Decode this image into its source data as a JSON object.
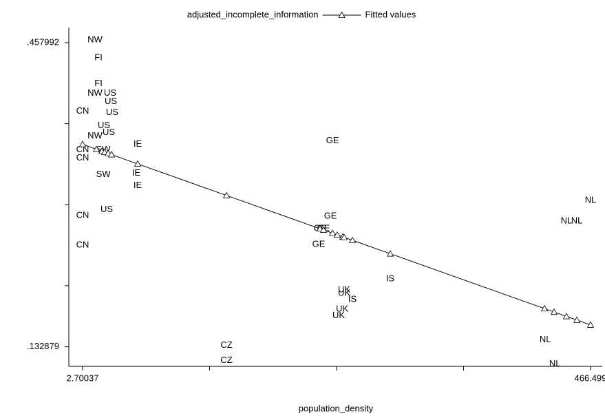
{
  "chart_data": {
    "type": "scatter",
    "xlabel": "population_density",
    "xlim": [
      -9.87,
      477.18
    ],
    "ylim": [
      0.112,
      0.4705
    ],
    "xticks": [
      2.70037,
      {
        "value": 118.65,
        "label": null
      },
      {
        "value": 234.6,
        "label": null
      },
      {
        "value": 350.55,
        "label": null
      },
      466.499
    ],
    "yticks": [
      {
        "value": 0.457992,
        "label": ".457992"
      },
      {
        "value": 0.3714,
        "label": null
      },
      {
        "value": 0.2848,
        "label": null
      },
      {
        "value": 0.1982,
        "label": null
      },
      {
        "value": 0.132879,
        "label": ".132879"
      }
    ],
    "grid": false,
    "legend": "top",
    "series": [
      {
        "name": "adjusted_incomplete_information",
        "color": "#000000",
        "labels": [
          "NW",
          "FI",
          "FI",
          "NW",
          "US",
          "US",
          "US",
          "CN",
          "US",
          "NW",
          "US",
          "CN",
          "SW",
          "CN",
          "SW",
          "IE",
          "IE",
          "IE",
          "US",
          "CN",
          "CN",
          "GE",
          "GE",
          "GE",
          "GE",
          "GE",
          "NL",
          "NL",
          "NL",
          "IS",
          "UK",
          "UK",
          "IS",
          "UK",
          "UK",
          "CZ",
          "CZ",
          "NL",
          "NL"
        ],
        "x": [
          14.0,
          17.2,
          17.2,
          14.0,
          27.8,
          28.5,
          29.7,
          2.7,
          22.2,
          14.0,
          26.6,
          2.7,
          21.6,
          2.7,
          21.6,
          53.0,
          51.7,
          53.0,
          24.7,
          2.7,
          2.7,
          230.9,
          229.0,
          219.5,
          222.7,
          218.3,
          466.5,
          444.5,
          454.0,
          283.6,
          241.5,
          241.5,
          249.1,
          239.7,
          236.5,
          134.1,
          134.1,
          425.1,
          433.9
        ],
        "values": [
          0.4609,
          0.4419,
          0.414,
          0.4037,
          0.4037,
          0.3949,
          0.3831,
          0.3846,
          0.3692,
          0.3582,
          0.3618,
          0.3435,
          0.3435,
          0.3347,
          0.3171,
          0.3494,
          0.3185,
          0.3053,
          0.2796,
          0.273,
          0.2414,
          0.353,
          0.2723,
          0.2591,
          0.2591,
          0.2422,
          0.2892,
          0.2672,
          0.2672,
          0.2055,
          0.1937,
          0.1901,
          0.1835,
          0.1732,
          0.1659,
          0.1343,
          0.1181,
          0.1402,
          0.1145
        ]
      },
      {
        "name": "Fitted values",
        "color": "#000000",
        "x": [
          2.7,
          15.3,
          20.3,
          22.8,
          26.0,
          29.1,
          53.0,
          134.1,
          219.5,
          222.7,
          230.9,
          235.2,
          240.3,
          241.5,
          249.1,
          283.6,
          424.4,
          433.2,
          444.5,
          454.0,
          466.5
        ],
        "values": [
          0.3494,
          0.3441,
          0.342,
          0.341,
          0.3397,
          0.3384,
          0.3284,
          0.2947,
          0.2591,
          0.2578,
          0.2544,
          0.2525,
          0.2505,
          0.25,
          0.2468,
          0.2324,
          0.1738,
          0.1701,
          0.1654,
          0.1615,
          0.1563
        ]
      }
    ]
  }
}
